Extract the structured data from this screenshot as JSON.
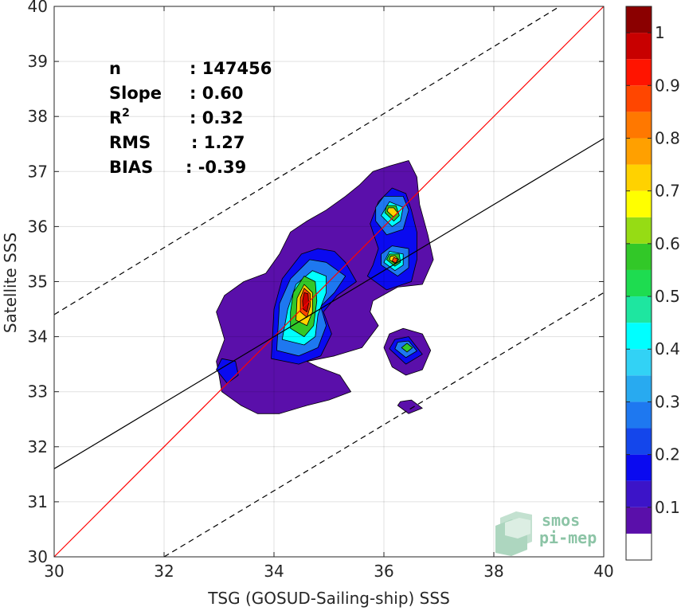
{
  "chart_data": {
    "type": "heatmap",
    "title": "",
    "xlabel": "TSG (GOSUD-Sailing-ship) SSS",
    "ylabel": "Satellite SSS",
    "xlim": [
      30,
      40
    ],
    "ylim": [
      30,
      40
    ],
    "x_ticks": [
      "30",
      "32",
      "34",
      "36",
      "38",
      "40"
    ],
    "y_ticks": [
      "30",
      "31",
      "32",
      "33",
      "34",
      "35",
      "36",
      "37",
      "38",
      "39",
      "40"
    ],
    "grid": true,
    "stats": [
      {
        "label": "n",
        "value": ": 147456"
      },
      {
        "label": "Slope",
        "value": ": 0.60"
      },
      {
        "label": "R",
        "sup": "2",
        "value": ": 0.32"
      },
      {
        "label": "RMS",
        "value": ": 1.27"
      },
      {
        "label": "BIAS",
        "value": ": -0.39"
      }
    ],
    "lines": [
      {
        "name": "one-to-one",
        "color": "#ff0000",
        "style": "solid",
        "points": [
          [
            30,
            30
          ],
          [
            40,
            40
          ]
        ]
      },
      {
        "name": "regression",
        "color": "#000000",
        "style": "solid",
        "points": [
          [
            30,
            31.6
          ],
          [
            40,
            37.6
          ]
        ]
      },
      {
        "name": "upper-bound",
        "color": "#000000",
        "style": "dashed",
        "points": [
          [
            30,
            34.4
          ],
          [
            39.2,
            40
          ]
        ]
      },
      {
        "name": "lower-bound",
        "color": "#000000",
        "style": "dashed",
        "points": [
          [
            32,
            30
          ],
          [
            40,
            34.8
          ]
        ]
      }
    ],
    "density_regions": [
      {
        "level": 0.05,
        "points": [
          [
            33.0,
            33.3
          ],
          [
            33.05,
            33.0
          ],
          [
            33.4,
            32.75
          ],
          [
            33.7,
            32.6
          ],
          [
            34.1,
            32.6
          ],
          [
            34.6,
            32.75
          ],
          [
            35.0,
            32.85
          ],
          [
            35.4,
            33.0
          ],
          [
            35.2,
            33.3
          ],
          [
            34.8,
            33.45
          ],
          [
            34.6,
            33.55
          ],
          [
            35.1,
            33.65
          ],
          [
            35.6,
            33.8
          ],
          [
            35.9,
            34.2
          ],
          [
            35.75,
            34.45
          ],
          [
            35.8,
            34.65
          ],
          [
            36.25,
            34.9
          ],
          [
            36.7,
            34.95
          ],
          [
            36.9,
            35.4
          ],
          [
            36.8,
            35.85
          ],
          [
            36.65,
            36.4
          ],
          [
            36.6,
            36.9
          ],
          [
            36.45,
            37.2
          ],
          [
            36.1,
            37.1
          ],
          [
            35.8,
            37.0
          ],
          [
            35.55,
            36.75
          ],
          [
            35.3,
            36.55
          ],
          [
            34.95,
            36.3
          ],
          [
            34.6,
            36.1
          ],
          [
            34.3,
            35.9
          ],
          [
            34.1,
            35.5
          ],
          [
            33.85,
            35.15
          ],
          [
            33.45,
            35.0
          ],
          [
            33.1,
            34.75
          ],
          [
            32.95,
            34.45
          ],
          [
            33.1,
            33.95
          ],
          [
            32.95,
            33.55
          ]
        ]
      },
      {
        "level": 0.05,
        "points": [
          [
            36.0,
            33.8
          ],
          [
            36.15,
            33.45
          ],
          [
            36.4,
            33.3
          ],
          [
            36.7,
            33.4
          ],
          [
            36.85,
            33.75
          ],
          [
            36.7,
            34.05
          ],
          [
            36.35,
            34.15
          ],
          [
            36.1,
            34.05
          ]
        ]
      },
      {
        "level": 0.05,
        "points": [
          [
            36.25,
            32.75
          ],
          [
            36.45,
            32.6
          ],
          [
            36.7,
            32.7
          ],
          [
            36.5,
            32.85
          ],
          [
            36.3,
            32.82
          ]
        ]
      },
      {
        "level": 0.15,
        "points": [
          [
            33.95,
            33.6
          ],
          [
            34.45,
            33.5
          ],
          [
            34.85,
            33.65
          ],
          [
            35.05,
            34.05
          ],
          [
            34.9,
            34.45
          ],
          [
            35.15,
            34.75
          ],
          [
            35.5,
            35.0
          ],
          [
            35.3,
            35.35
          ],
          [
            35.1,
            35.55
          ],
          [
            34.8,
            35.6
          ],
          [
            34.5,
            35.5
          ],
          [
            34.15,
            35.05
          ],
          [
            34.0,
            34.5
          ]
        ]
      },
      {
        "level": 0.15,
        "points": [
          [
            35.7,
            35.1
          ],
          [
            36.05,
            34.85
          ],
          [
            36.5,
            35.0
          ],
          [
            36.6,
            35.4
          ],
          [
            36.6,
            35.9
          ],
          [
            36.5,
            36.3
          ],
          [
            36.4,
            36.6
          ],
          [
            36.15,
            36.7
          ],
          [
            35.9,
            36.45
          ],
          [
            35.75,
            36.05
          ],
          [
            35.9,
            35.6
          ],
          [
            35.8,
            35.3
          ]
        ]
      },
      {
        "level": 0.15,
        "points": [
          [
            32.95,
            33.4
          ],
          [
            33.15,
            33.15
          ],
          [
            33.35,
            33.3
          ],
          [
            33.3,
            33.55
          ],
          [
            33.05,
            33.6
          ]
        ]
      },
      {
        "level": 0.15,
        "points": [
          [
            36.1,
            33.78
          ],
          [
            36.4,
            33.5
          ],
          [
            36.7,
            33.68
          ],
          [
            36.45,
            34.0
          ],
          [
            36.2,
            33.95
          ]
        ]
      },
      {
        "level": 0.25,
        "points": [
          [
            34.05,
            33.75
          ],
          [
            34.45,
            33.65
          ],
          [
            34.8,
            33.8
          ],
          [
            34.95,
            34.2
          ],
          [
            34.85,
            34.55
          ],
          [
            35.1,
            34.8
          ],
          [
            35.3,
            35.1
          ],
          [
            34.95,
            35.35
          ],
          [
            34.65,
            35.4
          ],
          [
            34.3,
            35.05
          ],
          [
            34.1,
            34.6
          ]
        ]
      },
      {
        "level": 0.25,
        "points": [
          [
            35.85,
            36.1
          ],
          [
            36.05,
            35.85
          ],
          [
            36.35,
            35.95
          ],
          [
            36.45,
            36.3
          ],
          [
            36.35,
            36.55
          ],
          [
            36.0,
            36.55
          ],
          [
            35.85,
            36.35
          ]
        ]
      },
      {
        "level": 0.25,
        "points": [
          [
            35.95,
            35.3
          ],
          [
            36.25,
            35.1
          ],
          [
            36.45,
            35.25
          ],
          [
            36.45,
            35.6
          ],
          [
            36.15,
            35.65
          ],
          [
            35.95,
            35.5
          ]
        ]
      },
      {
        "level": 0.25,
        "points": [
          [
            36.2,
            33.78
          ],
          [
            36.4,
            33.62
          ],
          [
            36.6,
            33.74
          ],
          [
            36.45,
            33.92
          ],
          [
            36.25,
            33.9
          ]
        ]
      },
      {
        "level": 0.4,
        "points": [
          [
            34.15,
            33.95
          ],
          [
            34.55,
            33.85
          ],
          [
            34.75,
            34.0
          ],
          [
            34.8,
            34.4
          ],
          [
            34.95,
            34.8
          ],
          [
            34.95,
            35.1
          ],
          [
            34.7,
            35.2
          ],
          [
            34.4,
            34.95
          ],
          [
            34.25,
            34.5
          ]
        ]
      },
      {
        "level": 0.4,
        "points": [
          [
            35.95,
            36.2
          ],
          [
            36.15,
            36.0
          ],
          [
            36.3,
            36.1
          ],
          [
            36.35,
            36.35
          ],
          [
            36.1,
            36.45
          ]
        ]
      },
      {
        "level": 0.4,
        "points": [
          [
            36.0,
            35.35
          ],
          [
            36.2,
            35.2
          ],
          [
            36.35,
            35.3
          ],
          [
            36.35,
            35.5
          ],
          [
            36.1,
            35.55
          ]
        ]
      },
      {
        "level": 0.55,
        "points": [
          [
            34.3,
            34.15
          ],
          [
            34.55,
            34.0
          ],
          [
            34.72,
            34.2
          ],
          [
            34.78,
            34.65
          ],
          [
            34.75,
            35.0
          ],
          [
            34.55,
            35.1
          ],
          [
            34.35,
            34.8
          ],
          [
            34.3,
            34.45
          ]
        ]
      },
      {
        "level": 0.55,
        "points": [
          [
            36.02,
            36.25
          ],
          [
            36.18,
            36.1
          ],
          [
            36.28,
            36.2
          ],
          [
            36.22,
            36.38
          ],
          [
            36.05,
            36.38
          ]
        ]
      },
      {
        "level": 0.55,
        "points": [
          [
            36.05,
            35.4
          ],
          [
            36.2,
            35.28
          ],
          [
            36.3,
            35.35
          ],
          [
            36.28,
            35.5
          ],
          [
            36.1,
            35.5
          ]
        ]
      },
      {
        "level": 0.55,
        "points": [
          [
            36.32,
            33.8
          ],
          [
            36.42,
            33.72
          ],
          [
            36.52,
            33.8
          ],
          [
            36.42,
            33.88
          ]
        ]
      },
      {
        "level": 0.7,
        "points": [
          [
            34.4,
            34.3
          ],
          [
            34.6,
            34.2
          ],
          [
            34.7,
            34.45
          ],
          [
            34.7,
            34.8
          ],
          [
            34.55,
            34.95
          ],
          [
            34.42,
            34.7
          ]
        ]
      },
      {
        "level": 0.7,
        "points": [
          [
            36.06,
            36.28
          ],
          [
            36.17,
            36.18
          ],
          [
            36.25,
            36.25
          ],
          [
            36.18,
            36.34
          ],
          [
            36.08,
            36.34
          ]
        ]
      },
      {
        "level": 0.7,
        "points": [
          [
            36.1,
            35.4
          ],
          [
            36.2,
            35.33
          ],
          [
            36.27,
            35.4
          ],
          [
            36.2,
            35.47
          ],
          [
            36.12,
            35.46
          ]
        ]
      },
      {
        "level": 0.85,
        "points": [
          [
            34.48,
            34.45
          ],
          [
            34.6,
            34.35
          ],
          [
            34.66,
            34.55
          ],
          [
            34.66,
            34.78
          ],
          [
            34.55,
            34.88
          ],
          [
            34.48,
            34.7
          ]
        ]
      },
      {
        "level": 0.85,
        "points": [
          [
            36.15,
            35.37
          ],
          [
            36.22,
            35.34
          ],
          [
            36.25,
            35.41
          ],
          [
            36.18,
            35.44
          ]
        ]
      },
      {
        "level": 0.95,
        "points": [
          [
            34.53,
            34.5
          ],
          [
            34.6,
            34.45
          ],
          [
            34.63,
            34.6
          ],
          [
            34.62,
            34.78
          ],
          [
            34.55,
            34.8
          ],
          [
            34.52,
            34.65
          ]
        ]
      }
    ],
    "colorbar": {
      "range": [
        0,
        1
      ],
      "tick_labels": [
        "0.1",
        "0.2",
        "0.3",
        "0.4",
        "0.5",
        "0.6",
        "0.7",
        "0.8",
        "0.9",
        "1"
      ],
      "tick_values": [
        0.1,
        0.2,
        0.3,
        0.4,
        0.5,
        0.6,
        0.7,
        0.8,
        0.9,
        1.0
      ],
      "levels": [
        {
          "from": 0.0,
          "to": 0.05,
          "color": "#ffffff"
        },
        {
          "from": 0.05,
          "to": 0.1,
          "color": "#5a0faa"
        },
        {
          "from": 0.1,
          "to": 0.15,
          "color": "#3c14c8"
        },
        {
          "from": 0.15,
          "to": 0.2,
          "color": "#0a0af0"
        },
        {
          "from": 0.2,
          "to": 0.25,
          "color": "#1446eb"
        },
        {
          "from": 0.25,
          "to": 0.3,
          "color": "#1e78f0"
        },
        {
          "from": 0.3,
          "to": 0.35,
          "color": "#28aaf0"
        },
        {
          "from": 0.35,
          "to": 0.4,
          "color": "#32d2f5"
        },
        {
          "from": 0.4,
          "to": 0.45,
          "color": "#00ffff"
        },
        {
          "from": 0.45,
          "to": 0.5,
          "color": "#1ee6a0"
        },
        {
          "from": 0.5,
          "to": 0.55,
          "color": "#1edc50"
        },
        {
          "from": 0.55,
          "to": 0.6,
          "color": "#32c828"
        },
        {
          "from": 0.6,
          "to": 0.65,
          "color": "#96dc14"
        },
        {
          "from": 0.65,
          "to": 0.7,
          "color": "#ffff00"
        },
        {
          "from": 0.7,
          "to": 0.75,
          "color": "#ffd200"
        },
        {
          "from": 0.75,
          "to": 0.8,
          "color": "#ffa000"
        },
        {
          "from": 0.8,
          "to": 0.85,
          "color": "#ff7800"
        },
        {
          "from": 0.85,
          "to": 0.9,
          "color": "#ff4600"
        },
        {
          "from": 0.9,
          "to": 0.95,
          "color": "#ff1400"
        },
        {
          "from": 0.95,
          "to": 1.0,
          "color": "#c80000"
        },
        {
          "from": 1.0,
          "to": 1.05,
          "color": "#8b0000"
        }
      ]
    }
  },
  "logo": {
    "line1": "smos",
    "line2": "pi-mep"
  }
}
